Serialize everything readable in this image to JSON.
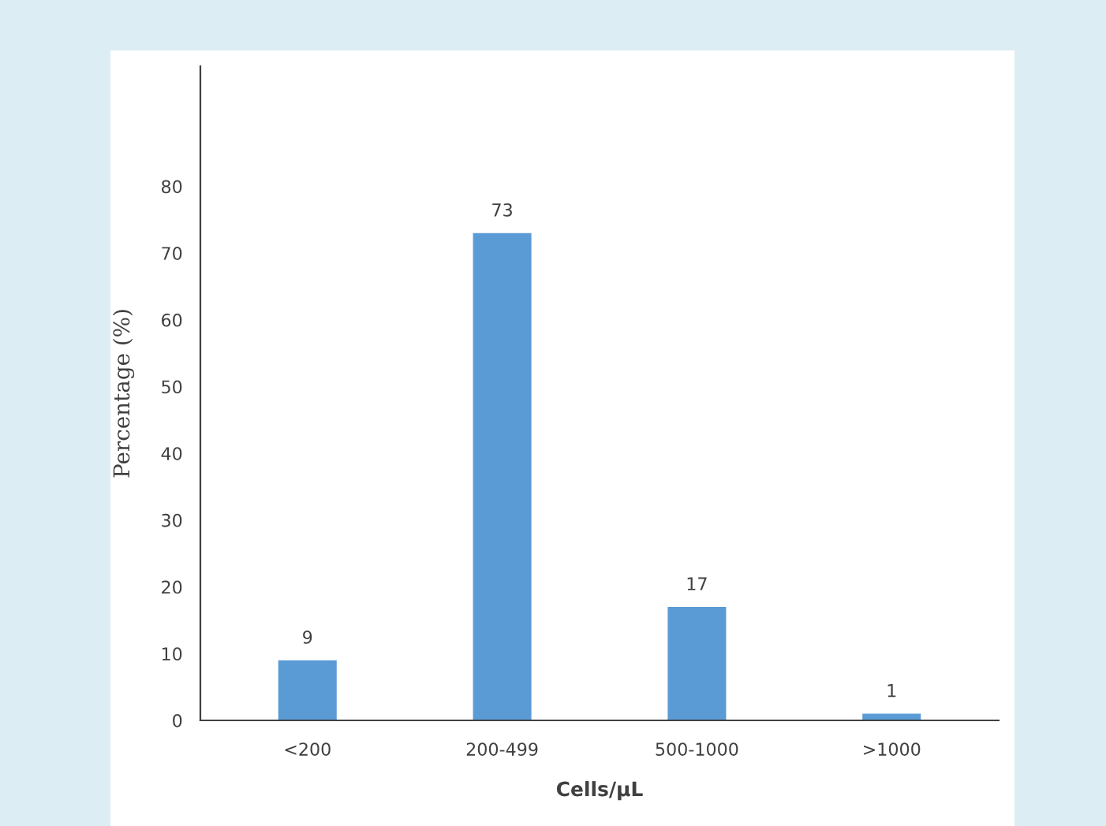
{
  "chart_data": {
    "type": "bar",
    "xlabel": "Cells/μL",
    "ylabel": "Percentage (%)",
    "categories": [
      "<200",
      "200-499",
      "500-1000",
      ">1000"
    ],
    "values": [
      9,
      73,
      17,
      1
    ],
    "color": "#5b9bd5",
    "ylim": [
      0,
      98
    ],
    "yticks": [
      0,
      10,
      20,
      30,
      40,
      50,
      60,
      70,
      80
    ],
    "data_labels": true
  }
}
